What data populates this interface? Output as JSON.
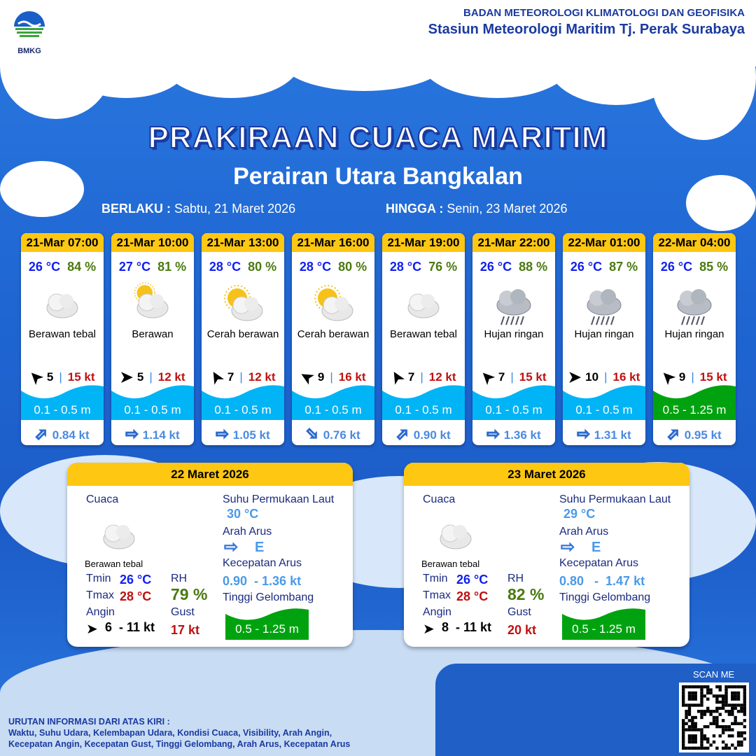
{
  "header": {
    "logo_text": "BMKG",
    "org_line1": "BADAN METEOROLOGI KLIMATOLOGI DAN GEOFISIKA",
    "org_line2": "Stasiun Meteorologi Maritim Tj. Perak Surabaya"
  },
  "title": "PRAKIRAAN CUACA MARITIM",
  "subtitle": "Perairan Utara Bangkalan",
  "validity": {
    "from_label": "BERLAKU :",
    "from": "Sabtu, 21 Maret 2026",
    "to_label": "HINGGA :",
    "to": "Senin, 23 Maret 2026"
  },
  "colors": {
    "header_yellow": "#fdc712",
    "wave_low": "#00b4f5",
    "wave_moderate": "#00a30f",
    "temp": "#1020f0",
    "rh": "#4a7a10",
    "gust": "#c01010"
  },
  "forecasts": [
    {
      "time": "21-Mar 07:00",
      "temp": "26 °C",
      "rh": "84 %",
      "icon": "cloudy-icon",
      "cond": "Berawan tebal",
      "wind_dir_deg": 225,
      "wind": "5",
      "gust": "15 kt",
      "wave": "0.1 - 0.5 m",
      "wave_cat": "low",
      "cur_dir_deg": 315,
      "current": "0.84 kt"
    },
    {
      "time": "21-Mar 10:00",
      "temp": "27 °C",
      "rh": "81 %",
      "icon": "partly-cloudy-icon",
      "cond": "Berawan",
      "wind_dir_deg": 0,
      "wind": "5",
      "gust": "12 kt",
      "wave": "0.1 - 0.5 m",
      "wave_cat": "low",
      "cur_dir_deg": 0,
      "current": "1.14 kt"
    },
    {
      "time": "21-Mar 13:00",
      "temp": "28 °C",
      "rh": "80 %",
      "icon": "sunny-cloudy-icon",
      "cond": "Cerah berawan",
      "wind_dir_deg": 240,
      "wind": "7",
      "gust": "12 kt",
      "wave": "0.1 - 0.5 m",
      "wave_cat": "low",
      "cur_dir_deg": 0,
      "current": "1.05 kt"
    },
    {
      "time": "21-Mar 16:00",
      "temp": "28 °C",
      "rh": "80 %",
      "icon": "sunny-cloudy-icon",
      "cond": "Cerah berawan",
      "wind_dir_deg": 210,
      "wind": "9",
      "gust": "16 kt",
      "wave": "0.1 - 0.5 m",
      "wave_cat": "low",
      "cur_dir_deg": 45,
      "current": "0.76 kt"
    },
    {
      "time": "21-Mar 19:00",
      "temp": "28 °C",
      "rh": "76 %",
      "icon": "cloudy-icon",
      "cond": "Berawan tebal",
      "wind_dir_deg": 240,
      "wind": "7",
      "gust": "12 kt",
      "wave": "0.1 - 0.5 m",
      "wave_cat": "low",
      "cur_dir_deg": 315,
      "current": "0.90 kt"
    },
    {
      "time": "21-Mar 22:00",
      "temp": "26 °C",
      "rh": "88 %",
      "icon": "light-rain-icon",
      "cond": "Hujan ringan",
      "wind_dir_deg": 225,
      "wind": "7",
      "gust": "15 kt",
      "wave": "0.1 - 0.5 m",
      "wave_cat": "low",
      "cur_dir_deg": 0,
      "current": "1.36 kt"
    },
    {
      "time": "22-Mar 01:00",
      "temp": "26 °C",
      "rh": "87 %",
      "icon": "light-rain-icon",
      "cond": "Hujan ringan",
      "wind_dir_deg": 0,
      "wind": "10",
      "gust": "16 kt",
      "wave": "0.1 - 0.5 m",
      "wave_cat": "low",
      "cur_dir_deg": 0,
      "current": "1.31 kt"
    },
    {
      "time": "22-Mar 04:00",
      "temp": "26 °C",
      "rh": "85 %",
      "icon": "light-rain-icon",
      "cond": "Hujan ringan",
      "wind_dir_deg": 225,
      "wind": "9",
      "gust": "15 kt",
      "wave": "0.5 - 1.25 m",
      "wave_cat": "moderate",
      "cur_dir_deg": 315,
      "current": "0.95 kt"
    }
  ],
  "daily": [
    {
      "date": "22 Maret 2026",
      "cuaca_label": "Cuaca",
      "cond": "Berawan tebal",
      "tmin_label": "Tmin",
      "tmin": "26 °C",
      "tmax_label": "Tmax",
      "tmax": "28 °C",
      "rh_label": "RH",
      "rh": "79 %",
      "angin_label": "Angin",
      "angin": "6  - 11 kt",
      "gust_label": "Gust",
      "gust": "17 kt",
      "sst_label": "Suhu Permukaan Laut",
      "sst": "30 °C",
      "arah_label": "Arah Arus",
      "arah": "E",
      "kec_label": "Kecepatan Arus",
      "kec": "0.90  - 1.36 kt",
      "tg_label": "Tinggi Gelombang",
      "tg": "0.5 - 1.25 m"
    },
    {
      "date": "23 Maret 2026",
      "cuaca_label": "Cuaca",
      "cond": "Berawan tebal",
      "tmin_label": "Tmin",
      "tmin": "26 °C",
      "tmax_label": "Tmax",
      "tmax": "28 °C",
      "rh_label": "RH",
      "rh": "82 %",
      "angin_label": "Angin",
      "angin": "8  - 11 kt",
      "gust_label": "Gust",
      "gust": "20 kt",
      "sst_label": "Suhu Permukaan Laut",
      "sst": "29 °C",
      "arah_label": "Arah Arus",
      "arah": "E",
      "kec_label": "Kecepatan Arus",
      "kec": "0.80   -  1.47 kt",
      "tg_label": "Tinggi Gelombang",
      "tg": "0.5 - 1.25 m"
    }
  ],
  "scan": {
    "label": "SCAN ME"
  },
  "footer": {
    "line1": "URUTAN INFORMASI DARI ATAS KIRI :",
    "line2": "Waktu, Suhu Udara, Kelembapan Udara, Kondisi Cuaca, Visibility, Arah Angin,",
    "line3": "Kecepatan Angin, Kecepatan Gust, Tinggi Gelombang, Arah Arus, Kecepatan Arus"
  }
}
